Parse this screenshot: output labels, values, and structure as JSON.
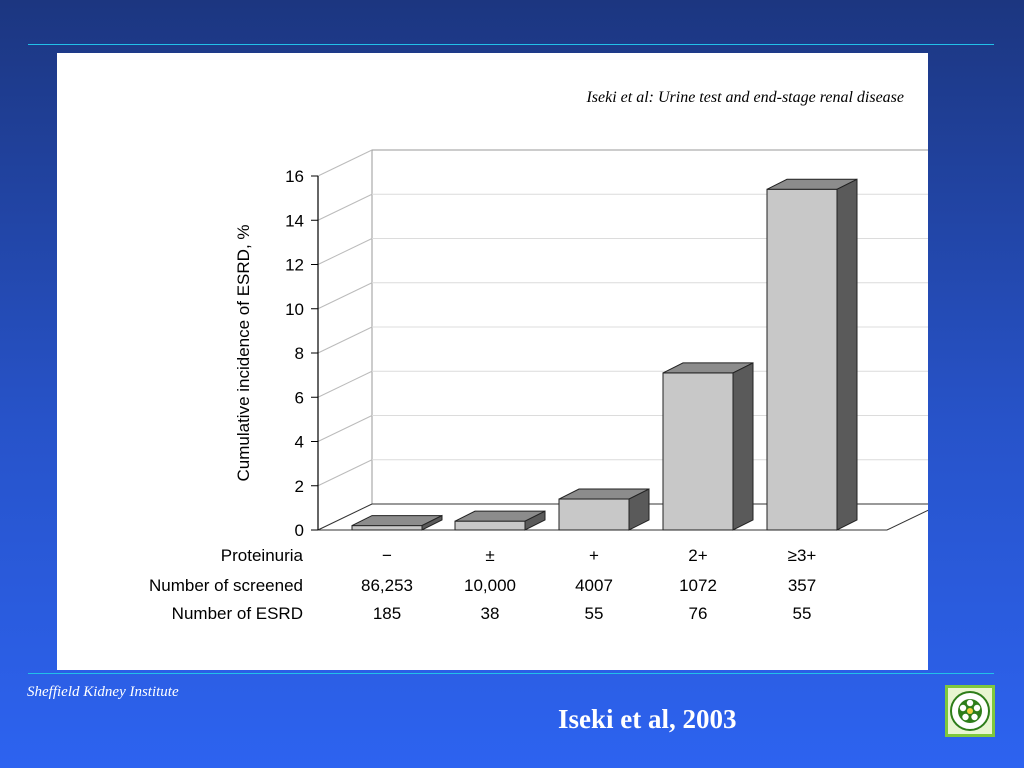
{
  "slide": {
    "footer_left": "Sheffield Kidney Institute",
    "citation": "Iseki et al, 2003",
    "logo_icon": "kidney-institute-logo"
  },
  "figure": {
    "header": "Iseki et al: Urine test and end-stage renal disease"
  },
  "colors": {
    "bar_front": "#c8c8c8",
    "bar_top": "#8c8c8c",
    "bar_side": "#5a5a5a",
    "gridline": "#dcdcdc",
    "axis": "#000000"
  },
  "chart_data": {
    "type": "bar",
    "title": "",
    "ylabel": "Cumulative incidence of ESRD, %",
    "xlabel": "",
    "ylim": [
      0,
      16
    ],
    "yticks": [
      "0",
      "2",
      "4",
      "6",
      "8",
      "10",
      "12",
      "14",
      "16"
    ],
    "categories": [
      "−",
      "±",
      "+",
      "2+",
      "≥3+"
    ],
    "values": [
      0.2,
      0.4,
      1.4,
      7.1,
      15.4
    ],
    "grid": true,
    "table": {
      "rows": [
        {
          "label": "Proteinuria",
          "cells": [
            "−",
            "±",
            "+",
            "2+",
            "≥3+"
          ]
        },
        {
          "label": "Number of screened",
          "cells": [
            "86,253",
            "10,000",
            "4007",
            "1072",
            "357"
          ]
        },
        {
          "label": "Number of ESRD",
          "cells": [
            "185",
            "38",
            "55",
            "76",
            "55"
          ]
        }
      ]
    }
  }
}
